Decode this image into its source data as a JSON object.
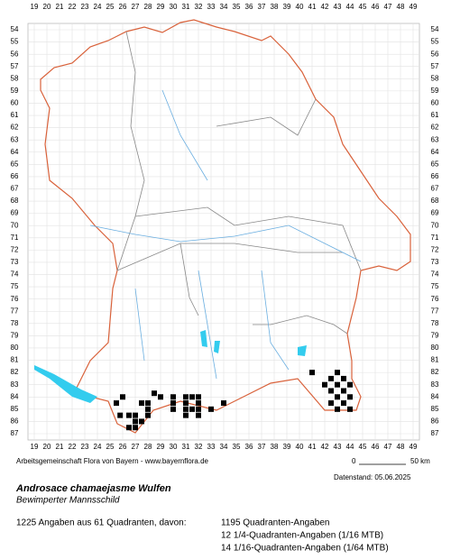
{
  "map": {
    "xlabels": [
      19,
      20,
      21,
      22,
      23,
      24,
      25,
      26,
      27,
      28,
      29,
      30,
      31,
      32,
      33,
      34,
      35,
      36,
      37,
      38,
      39,
      40,
      41,
      42,
      43,
      44,
      45,
      46,
      47,
      48,
      49
    ],
    "ylabels": [
      54,
      55,
      56,
      57,
      58,
      59,
      60,
      61,
      62,
      63,
      64,
      65,
      66,
      67,
      68,
      69,
      70,
      71,
      72,
      73,
      74,
      75,
      76,
      77,
      78,
      79,
      80,
      81,
      82,
      83,
      84,
      85,
      86,
      87
    ],
    "occurrences": [
      [
        41,
        82
      ],
      [
        43,
        82
      ],
      [
        42.5,
        82.5
      ],
      [
        43.5,
        82.5
      ],
      [
        42,
        83
      ],
      [
        43,
        83
      ],
      [
        44,
        83
      ],
      [
        42.5,
        83.5
      ],
      [
        43.5,
        83.5
      ],
      [
        43,
        84
      ],
      [
        44,
        84
      ],
      [
        42.5,
        84.5
      ],
      [
        43.5,
        84.5
      ],
      [
        43,
        85
      ],
      [
        44,
        85
      ],
      [
        26,
        84
      ],
      [
        28.5,
        83.7
      ],
      [
        29,
        84
      ],
      [
        30,
        84
      ],
      [
        31,
        84
      ],
      [
        31.5,
        84
      ],
      [
        32,
        84
      ],
      [
        25.5,
        84.5
      ],
      [
        27.5,
        84.5
      ],
      [
        28,
        84.5
      ],
      [
        30,
        84.5
      ],
      [
        31,
        84.5
      ],
      [
        32,
        84.5
      ],
      [
        28,
        85
      ],
      [
        30,
        85
      ],
      [
        31,
        85
      ],
      [
        31.5,
        85
      ],
      [
        32,
        85
      ],
      [
        33,
        85
      ],
      [
        34,
        84.5
      ],
      [
        25.8,
        85.5
      ],
      [
        26.5,
        85.5
      ],
      [
        27,
        85.5
      ],
      [
        28,
        85.5
      ],
      [
        31,
        85.5
      ],
      [
        32,
        85.5
      ],
      [
        27,
        86
      ],
      [
        27.5,
        86
      ],
      [
        26.5,
        86.5
      ],
      [
        27,
        86.5
      ]
    ]
  },
  "footer": {
    "credit": "Arbeitsgemeinschaft Flora von Bayern - www.bayernflora.de",
    "scale_start": "0",
    "scale_end": "50 km",
    "date": "Datenstand: 05.06.2025",
    "title": "Androsace chamaejasme Wulfen",
    "subtitle": "Bewimperter Mannsschild",
    "summary": "1225 Angaben aus 61 Quadranten, davon:",
    "details": [
      "1195 Quadranten-Angaben",
      "12 1/4-Quadranten-Angaben (1/16 MTB)",
      "14 1/16-Quadranten-Angaben (1/64 MTB)"
    ]
  }
}
